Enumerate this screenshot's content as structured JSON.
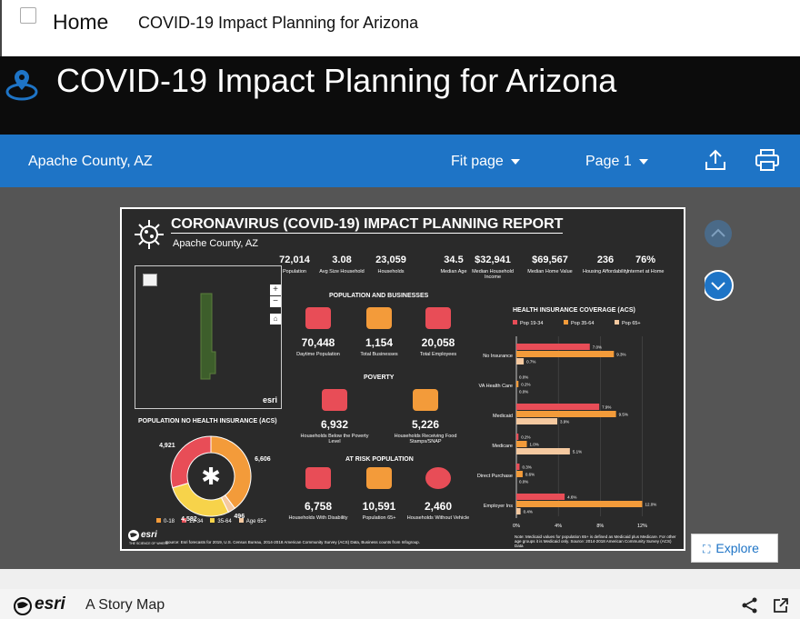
{
  "header": {
    "home_label": "Home",
    "page_title": "COVID-19 Impact Planning for Arizona"
  },
  "banner": {
    "title": "COVID-19 Impact Planning for Arizona"
  },
  "toolbar": {
    "location": "Apache County, AZ",
    "fit_label": "Fit page",
    "page_label": "Page 1"
  },
  "report": {
    "title": "CORONAVIRUS (COVID-19) IMPACT PLANNING REPORT",
    "subtitle": "Apache County, AZ",
    "stats": [
      {
        "value": "72,014",
        "label": "Population"
      },
      {
        "value": "3.08",
        "label": "Avg Size Household"
      },
      {
        "value": "23,059",
        "label": "Households"
      },
      {
        "value": "34.5",
        "label": "Median Age"
      },
      {
        "value": "$32,941",
        "label": "Median Household Income"
      },
      {
        "value": "$69,567",
        "label": "Median Home Value"
      },
      {
        "value": "236",
        "label": "Housing Affordability"
      },
      {
        "value": "76%",
        "label": "Internet at Home"
      }
    ],
    "map_attr": "esri",
    "pop_biz": {
      "heading": "POPULATION AND BUSINESSES",
      "items": [
        {
          "value": "70,448",
          "label": "Daytime Population"
        },
        {
          "value": "1,154",
          "label": "Total Businesses"
        },
        {
          "value": "20,058",
          "label": "Total Employees"
        }
      ]
    },
    "poverty": {
      "heading": "POVERTY",
      "items": [
        {
          "value": "6,932",
          "label": "Households Below the Poverty Level"
        },
        {
          "value": "5,226",
          "label": "Households Receiving Food Stamps/SNAP"
        }
      ]
    },
    "at_risk": {
      "heading": "AT RISK POPULATION",
      "items": [
        {
          "value": "6,758",
          "label": "Households With Disability"
        },
        {
          "value": "10,591",
          "label": "Population 65+"
        },
        {
          "value": "2,460",
          "label": "Households Without Vehicle"
        }
      ]
    },
    "donut": {
      "heading": "POPULATION NO HEALTH INSURANCE (ACS)",
      "legend": [
        "0-18",
        "19-34",
        "35-64",
        "Age 65+"
      ]
    },
    "hbar": {
      "heading": "HEALTH INSURANCE COVERAGE (ACS)",
      "xticks": [
        "0%",
        "4%",
        "8%",
        "12%"
      ],
      "note": "Note: Medicaid values for population 65+ is defined as Medicaid plus Medicare. For other age groups it is Medicaid only. Source: 2014-2018 American Community Survey (ACS) Data"
    },
    "source": "Source: Esri forecasts for 2019, U.S. Census Bureau, 2014-2018 American Community Survey (ACS) Data, Business counts from Infogroup.",
    "logo_text": "esri",
    "logo_sub": "THE SCIENCE OF WHERE"
  },
  "explore_label": "Explore",
  "footer": {
    "brand": "esri",
    "story_label": "A Story Map"
  },
  "colors": {
    "red": "#e84d57",
    "orange": "#f39b3a",
    "peach": "#f5c9a0",
    "yellow": "#f7d34a",
    "blue": "#1e74c6"
  },
  "chart_data": [
    {
      "type": "pie",
      "title": "POPULATION NO HEALTH INSURANCE (ACS)",
      "categories": [
        "0-18",
        "19-34",
        "35-64",
        "Age 65+"
      ],
      "values": [
        6606,
        4921,
        4582,
        496
      ]
    },
    {
      "type": "bar",
      "title": "HEALTH INSURANCE COVERAGE (ACS)",
      "categories": [
        "No Insurance",
        "VA Health Care",
        "Medicaid",
        "Medicare",
        "Direct Purchase",
        "Employer Ins"
      ],
      "series": [
        {
          "name": "Pop 19-34",
          "values": [
            7.0,
            0.0,
            7.9,
            0.2,
            0.3,
            4.6
          ]
        },
        {
          "name": "Pop 35-64",
          "values": [
            9.3,
            0.2,
            9.5,
            1.0,
            0.6,
            12.0
          ]
        },
        {
          "name": "Pop 65+",
          "values": [
            0.7,
            0.0,
            3.9,
            5.1,
            0.0,
            0.4
          ]
        }
      ],
      "xlim": [
        0,
        13
      ]
    }
  ]
}
